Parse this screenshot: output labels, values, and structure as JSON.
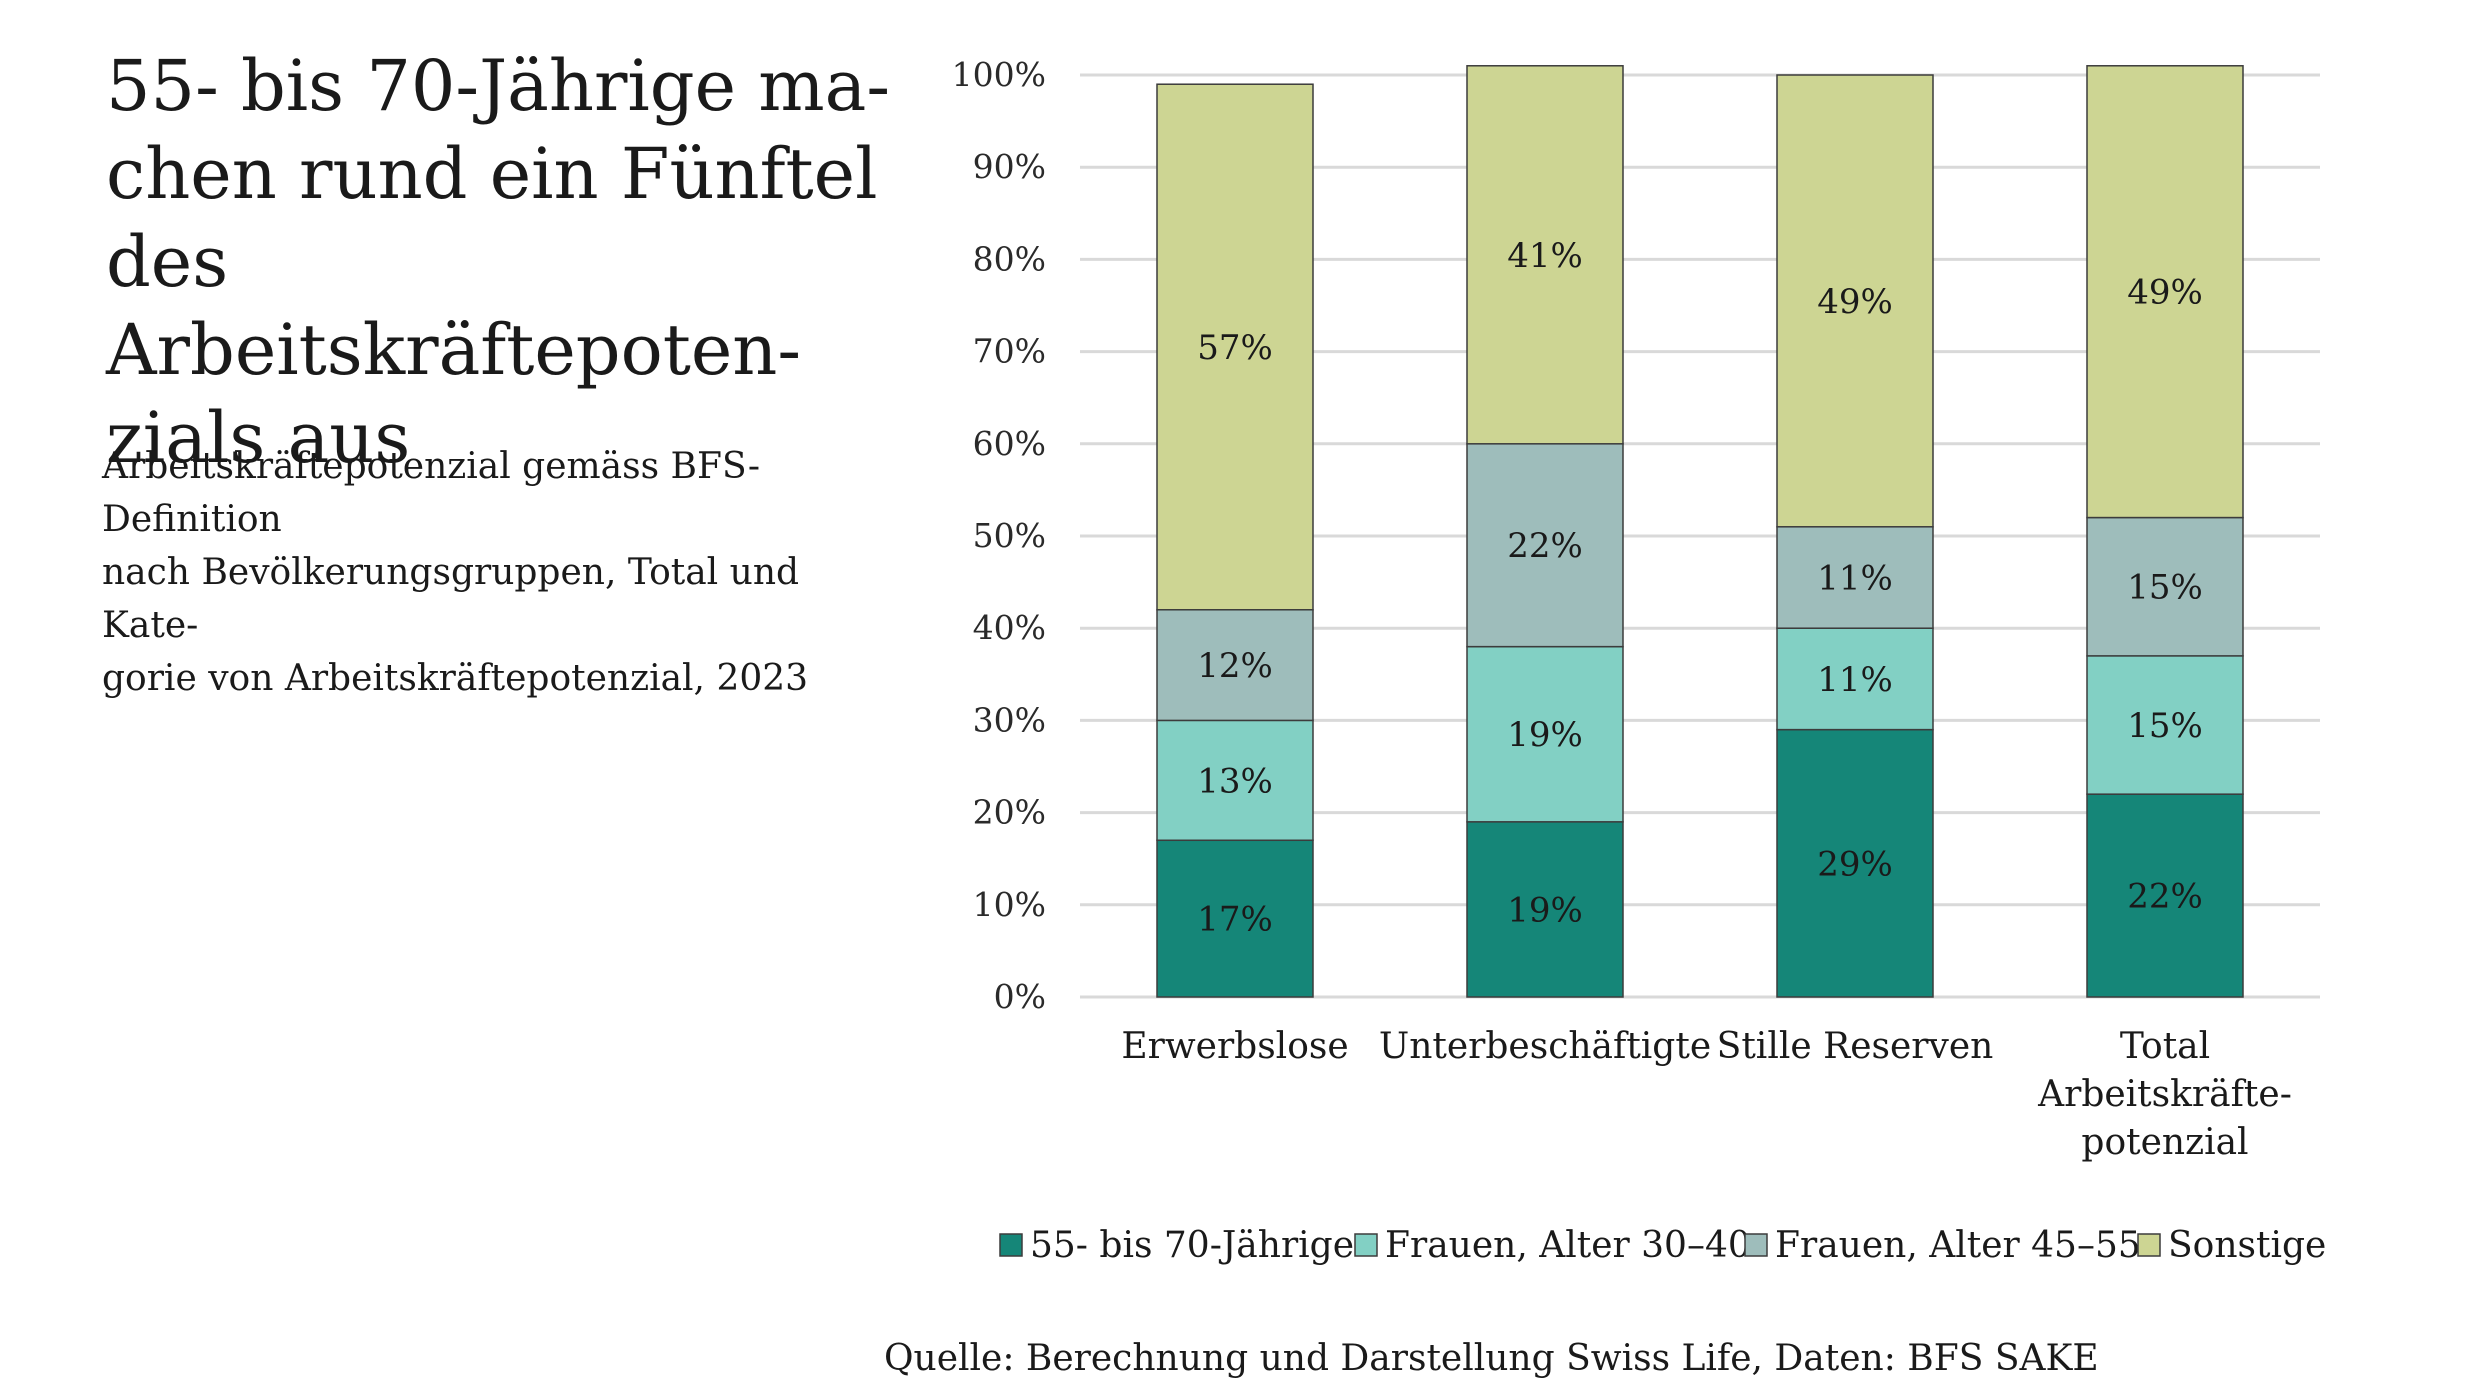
{
  "title_lines": [
    "55- bis 70-Jährige ma-",
    "chen rund ein Fünftel",
    "des Arbeitskräftepoten-",
    "zials aus"
  ],
  "subtitle_lines": [
    "Arbeitskräftepotenzial gemäss BFS-Definition",
    "nach Bevölkerungsgruppen, Total und Kate-",
    "gorie von Arbeitskräftepotenzial, 2023"
  ],
  "source": "Quelle: Berechnung und Darstellung Swiss Life, Daten: BFS SAKE",
  "chart_data": {
    "type": "bar",
    "stacked": true,
    "categories": [
      [
        "Erwerbslose"
      ],
      [
        "Unterbeschäftigte"
      ],
      [
        "Stille Reserven"
      ],
      [
        "Total",
        "Arbeitskräfte-",
        "potenzial"
      ]
    ],
    "series": [
      {
        "name": "55- bis 70-Jährige",
        "color": "#158678",
        "values": [
          17,
          19,
          29,
          22
        ],
        "labels": [
          "17%",
          "19%",
          "29%",
          "22%"
        ]
      },
      {
        "name": "Frauen, Alter 30–40",
        "color": "#82d0c4",
        "values": [
          13,
          19,
          11,
          15
        ],
        "labels": [
          "13%",
          "19%",
          "11%",
          "15%"
        ]
      },
      {
        "name": "Frauen, Alter 45–55",
        "color": "#9ebdbb",
        "values": [
          12,
          22,
          11,
          15
        ],
        "labels": [
          "12%",
          "22%",
          "11%",
          "15%"
        ]
      },
      {
        "name": "Sonstige",
        "color": "#cdd593",
        "values": [
          57,
          41,
          49,
          49
        ],
        "labels": [
          "57%",
          "41%",
          "49%",
          "49%"
        ]
      }
    ],
    "ylim": [
      0,
      100
    ],
    "yticks": [
      "0%",
      "10%",
      "20%",
      "30%",
      "40%",
      "50%",
      "60%",
      "70%",
      "80%",
      "90%",
      "100%"
    ],
    "grid": true,
    "legend_position": "bottom"
  }
}
